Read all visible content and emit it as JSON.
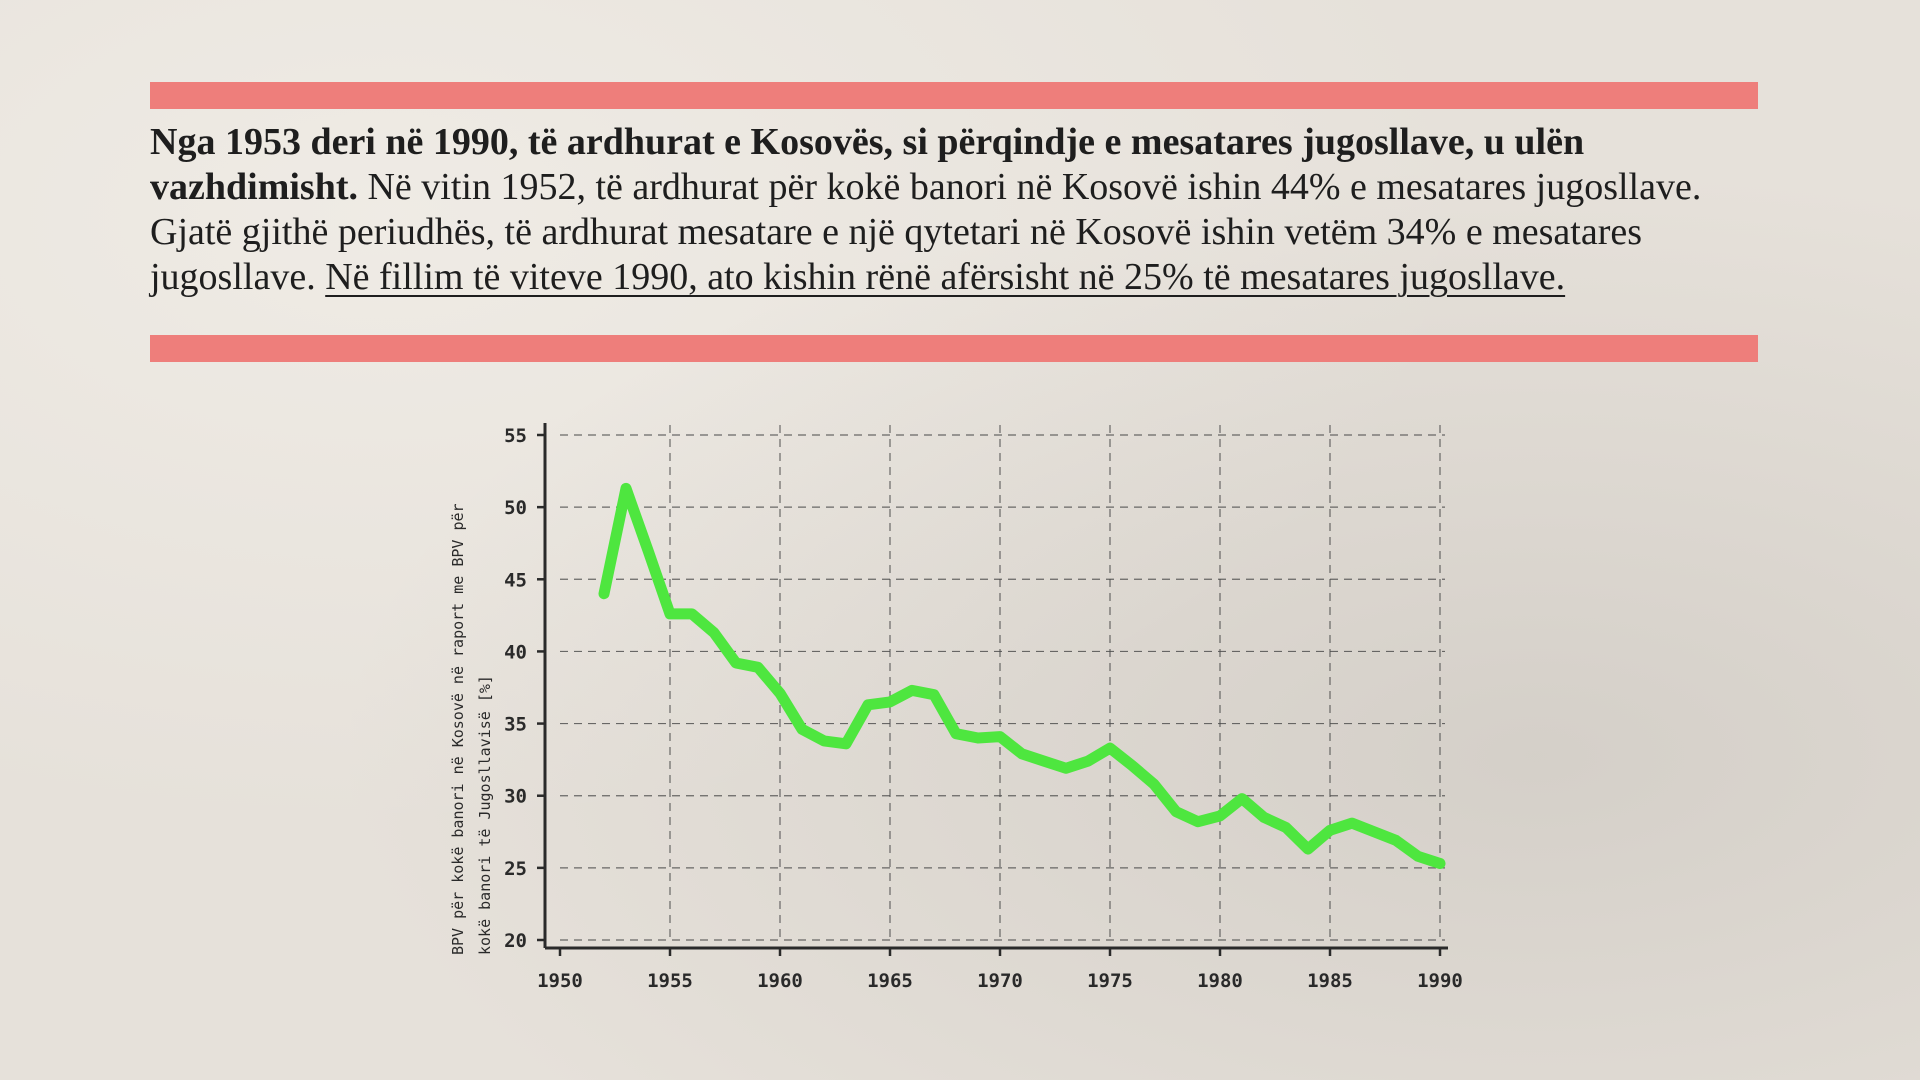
{
  "caption": {
    "bold": "Nga 1953 deri në 1990, të ardhurat e Kosovës, si përqindje e mesatares jugosllave, u ulën vazhdimisht.",
    "plain": " Në vitin 1952, të ardhurat për kokë banori në Kosovë ishin 44% e mesatares jugosllave. Gjatë gjithë periudhës, të ardhurat mesatare e një qytetari në Kosovë ishin vetëm 34% e mesatares jugosllave. ",
    "underlined": "Në fillim të viteve 1990, ato kishin rënë afërsisht në 25% të mesatares jugosllave."
  },
  "colors": {
    "stripe": "#ee7e7b",
    "line": "#4ee63f",
    "axis": "#2a2a2a",
    "grid": "#4a4a4a"
  },
  "chart_data": {
    "type": "line",
    "title": "",
    "xlabel": "",
    "ylabel_lines": [
      "BPV për kokë banori në Kosovë në raport me BPV për",
      "kokë banori të Jugosllavisë [%]"
    ],
    "xlim": [
      1950,
      1990
    ],
    "ylim": [
      20,
      55
    ],
    "xticks": [
      1950,
      1955,
      1960,
      1965,
      1970,
      1975,
      1980,
      1985,
      1990
    ],
    "yticks": [
      20,
      25,
      30,
      35,
      40,
      45,
      50,
      55
    ],
    "grid": true,
    "series": [
      {
        "x": [
          1952,
          1953,
          1954,
          1955,
          1956,
          1957,
          1958,
          1959,
          1960,
          1961,
          1962,
          1963,
          1964,
          1965,
          1966,
          1967,
          1968,
          1969,
          1970,
          1971,
          1972,
          1973,
          1974,
          1975,
          1976,
          1977,
          1978,
          1979,
          1980,
          1981,
          1982,
          1983,
          1984,
          1985,
          1986,
          1987,
          1988,
          1989,
          1990
        ],
        "y": [
          44.0,
          51.3,
          47.0,
          42.6,
          42.6,
          41.3,
          39.2,
          38.9,
          37.1,
          34.6,
          33.8,
          33.6,
          36.3,
          36.5,
          37.3,
          37.0,
          34.3,
          34.0,
          34.1,
          32.9,
          32.4,
          31.9,
          32.4,
          33.3,
          32.1,
          30.8,
          28.9,
          28.2,
          28.6,
          29.8,
          28.5,
          27.8,
          26.3,
          27.6,
          28.1,
          27.5,
          26.9,
          25.8,
          25.3
        ]
      }
    ]
  }
}
